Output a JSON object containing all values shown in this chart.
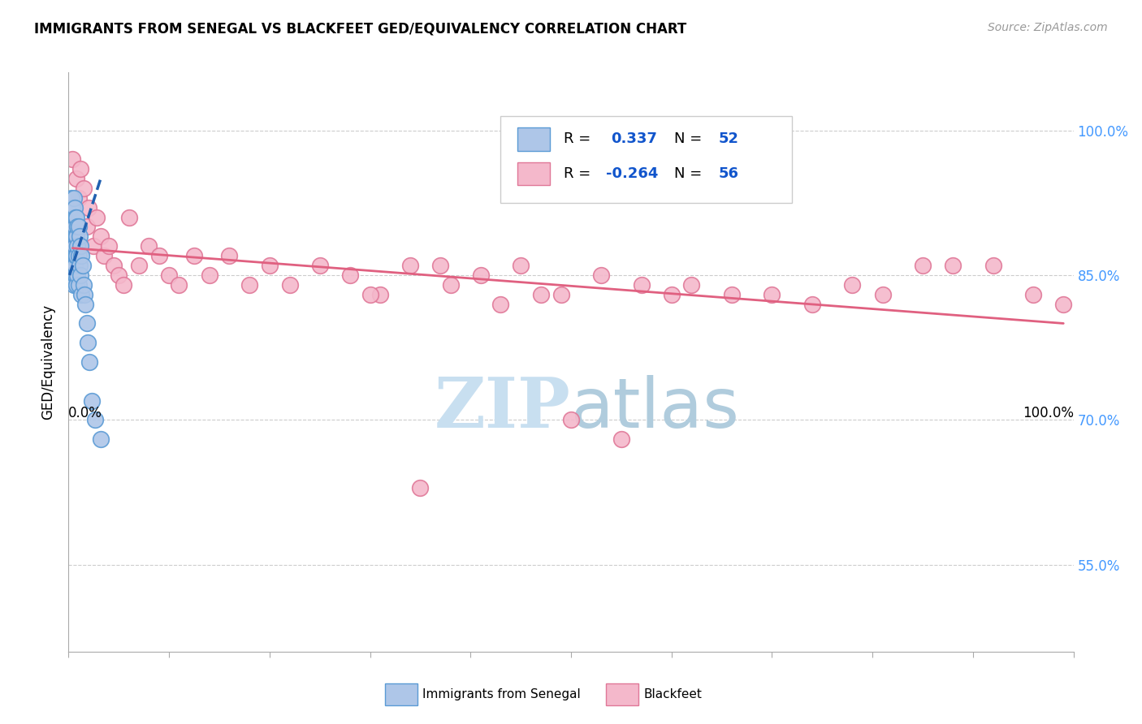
{
  "title": "IMMIGRANTS FROM SENEGAL VS BLACKFEET GED/EQUIVALENCY CORRELATION CHART",
  "source": "Source: ZipAtlas.com",
  "ylabel": "GED/Equivalency",
  "y_ticks": [
    0.55,
    0.7,
    0.85,
    1.0
  ],
  "y_tick_labels": [
    "55.0%",
    "70.0%",
    "85.0%",
    "100.0%"
  ],
  "xlim": [
    0.0,
    1.0
  ],
  "ylim": [
    0.46,
    1.06
  ],
  "senegal_color": "#aec6e8",
  "senegal_edge": "#5b9bd5",
  "senegal_line_color": "#2060b0",
  "blackfeet_color": "#f4b8cb",
  "blackfeet_edge": "#e07898",
  "blackfeet_line_color": "#e06080",
  "background_color": "#ffffff",
  "watermark_color": "#c8dff0",
  "legend_box_color": "#f0f0f0",
  "senegal_x": [
    0.001,
    0.001,
    0.002,
    0.002,
    0.002,
    0.003,
    0.003,
    0.003,
    0.003,
    0.004,
    0.004,
    0.004,
    0.004,
    0.005,
    0.005,
    0.005,
    0.005,
    0.005,
    0.006,
    0.006,
    0.006,
    0.006,
    0.007,
    0.007,
    0.007,
    0.007,
    0.008,
    0.008,
    0.008,
    0.008,
    0.009,
    0.009,
    0.009,
    0.01,
    0.01,
    0.01,
    0.011,
    0.011,
    0.012,
    0.012,
    0.013,
    0.013,
    0.014,
    0.015,
    0.016,
    0.017,
    0.018,
    0.019,
    0.021,
    0.023,
    0.026,
    0.032
  ],
  "senegal_y": [
    0.88,
    0.86,
    0.92,
    0.9,
    0.87,
    0.93,
    0.91,
    0.88,
    0.85,
    0.92,
    0.9,
    0.88,
    0.85,
    0.93,
    0.91,
    0.89,
    0.87,
    0.84,
    0.92,
    0.9,
    0.88,
    0.86,
    0.91,
    0.89,
    0.87,
    0.85,
    0.91,
    0.89,
    0.87,
    0.84,
    0.9,
    0.88,
    0.85,
    0.9,
    0.87,
    0.84,
    0.89,
    0.86,
    0.88,
    0.85,
    0.87,
    0.83,
    0.86,
    0.84,
    0.83,
    0.82,
    0.8,
    0.78,
    0.76,
    0.72,
    0.7,
    0.68
  ],
  "blackfeet_x": [
    0.004,
    0.008,
    0.01,
    0.012,
    0.015,
    0.018,
    0.02,
    0.025,
    0.028,
    0.032,
    0.035,
    0.04,
    0.045,
    0.05,
    0.055,
    0.06,
    0.07,
    0.08,
    0.09,
    0.1,
    0.11,
    0.125,
    0.14,
    0.16,
    0.18,
    0.2,
    0.22,
    0.25,
    0.28,
    0.31,
    0.34,
    0.37,
    0.41,
    0.45,
    0.49,
    0.53,
    0.57,
    0.62,
    0.66,
    0.7,
    0.74,
    0.78,
    0.81,
    0.85,
    0.88,
    0.92,
    0.96,
    0.99,
    0.38,
    0.3,
    0.47,
    0.5,
    0.43,
    0.35,
    0.55,
    0.6
  ],
  "blackfeet_y": [
    0.97,
    0.95,
    0.93,
    0.96,
    0.94,
    0.9,
    0.92,
    0.88,
    0.91,
    0.89,
    0.87,
    0.88,
    0.86,
    0.85,
    0.84,
    0.91,
    0.86,
    0.88,
    0.87,
    0.85,
    0.84,
    0.87,
    0.85,
    0.87,
    0.84,
    0.86,
    0.84,
    0.86,
    0.85,
    0.83,
    0.86,
    0.86,
    0.85,
    0.86,
    0.83,
    0.85,
    0.84,
    0.84,
    0.83,
    0.83,
    0.82,
    0.84,
    0.83,
    0.86,
    0.86,
    0.86,
    0.83,
    0.82,
    0.84,
    0.83,
    0.83,
    0.7,
    0.82,
    0.63,
    0.68,
    0.83
  ],
  "senegal_trend_x": [
    0.001,
    0.032
  ],
  "senegal_trend_y": [
    0.85,
    0.95
  ],
  "blackfeet_trend_x": [
    0.004,
    0.99
  ],
  "blackfeet_trend_y": [
    0.878,
    0.8
  ]
}
